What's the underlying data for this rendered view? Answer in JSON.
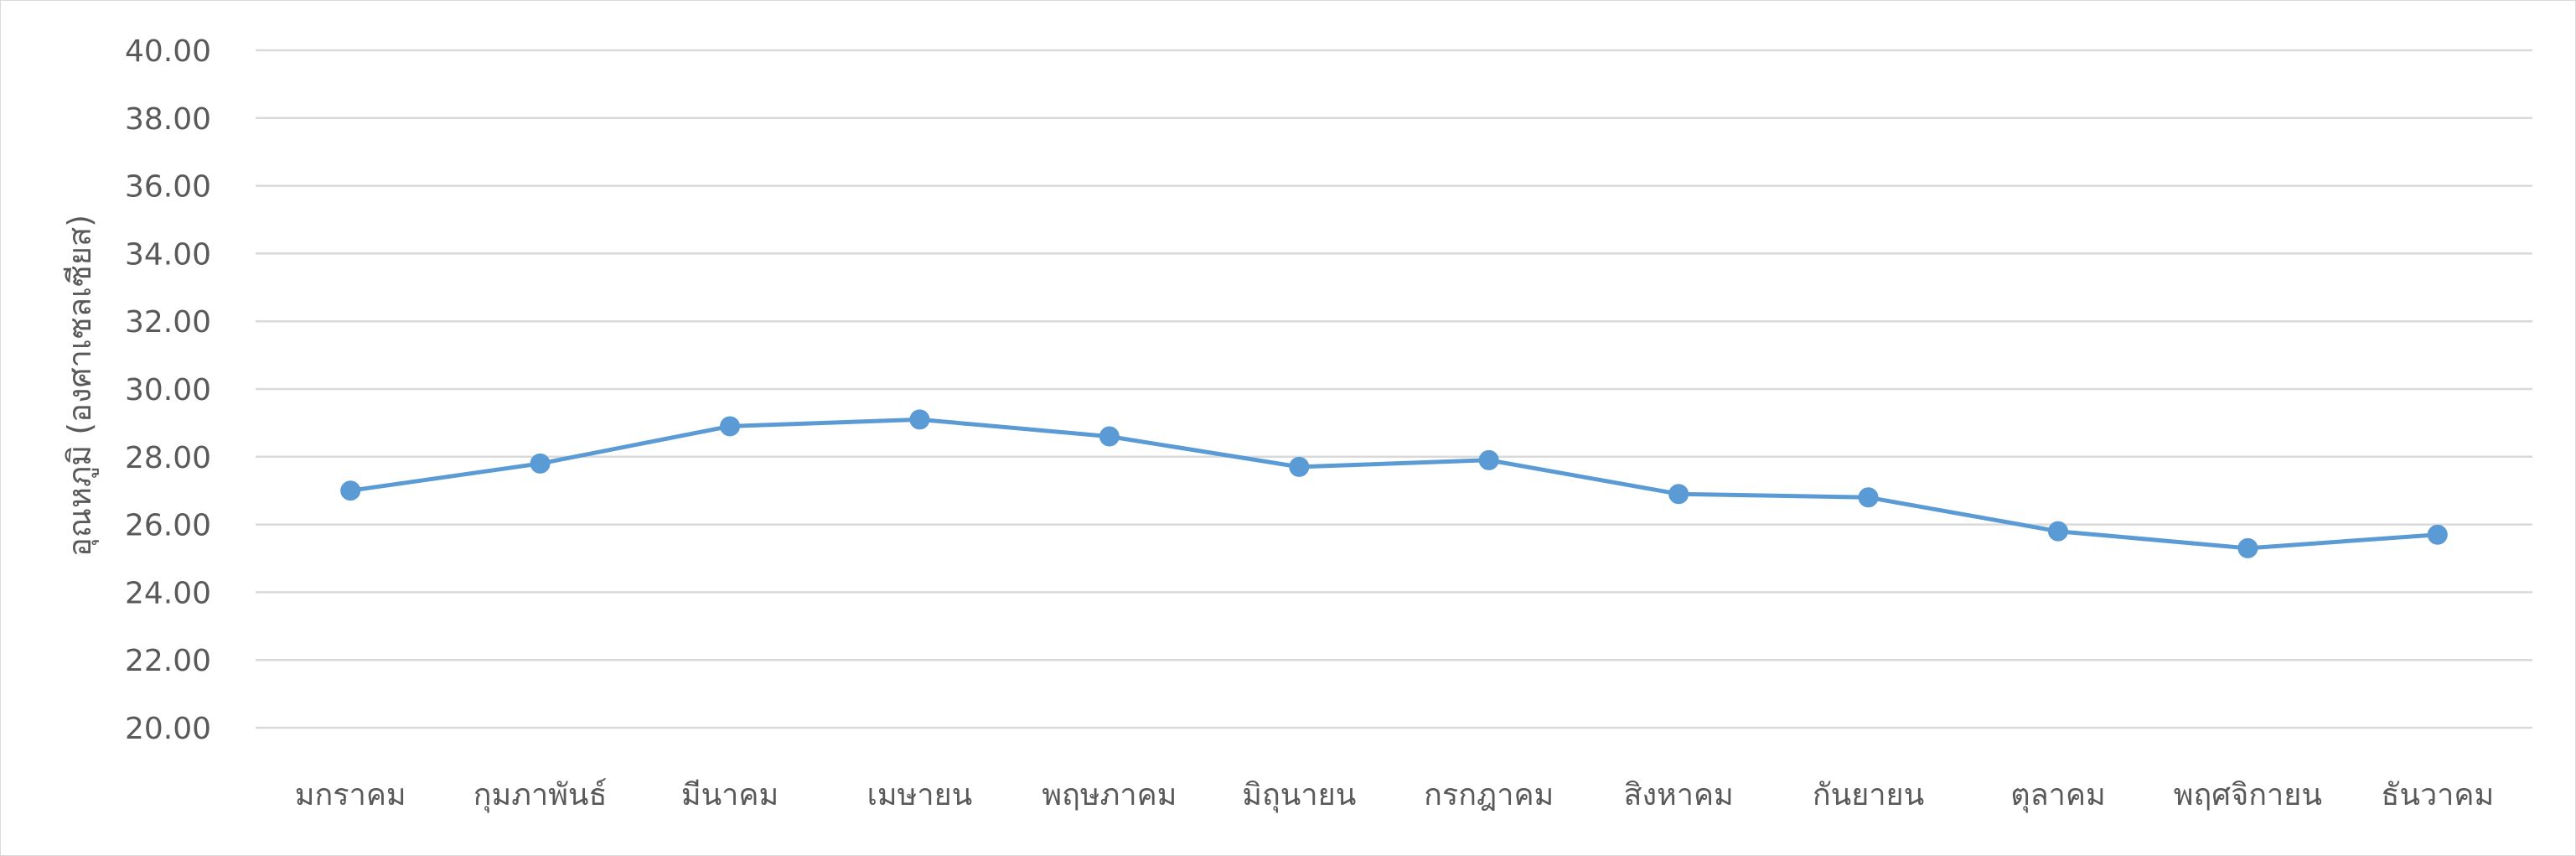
{
  "chart_data": {
    "type": "line",
    "title": "",
    "xlabel": "",
    "ylabel": "อุณหภูมิ (องศาเซลเซียส)",
    "ylim": [
      20,
      40
    ],
    "y_ticks": [
      "40.00",
      "38.00",
      "36.00",
      "34.00",
      "32.00",
      "30.00",
      "28.00",
      "26.00",
      "24.00",
      "22.00",
      "20.00"
    ],
    "grid": true,
    "legend": "none",
    "categories": [
      "มกราคม",
      "กุมภาพันธ์",
      "มีนาคม",
      "เมษายน",
      "พฤษภาคม",
      "มิถุนายน",
      "กรกฎาคม",
      "สิงหาคม",
      "กันยายน",
      "ตุลาคม",
      "พฤศจิกายน",
      "ธันวาคม"
    ],
    "series": [
      {
        "values": [
          27.0,
          27.8,
          28.9,
          29.1,
          28.6,
          27.7,
          27.9,
          26.9,
          26.8,
          25.8,
          25.3,
          25.7
        ],
        "color": "#5b9bd5"
      }
    ]
  }
}
